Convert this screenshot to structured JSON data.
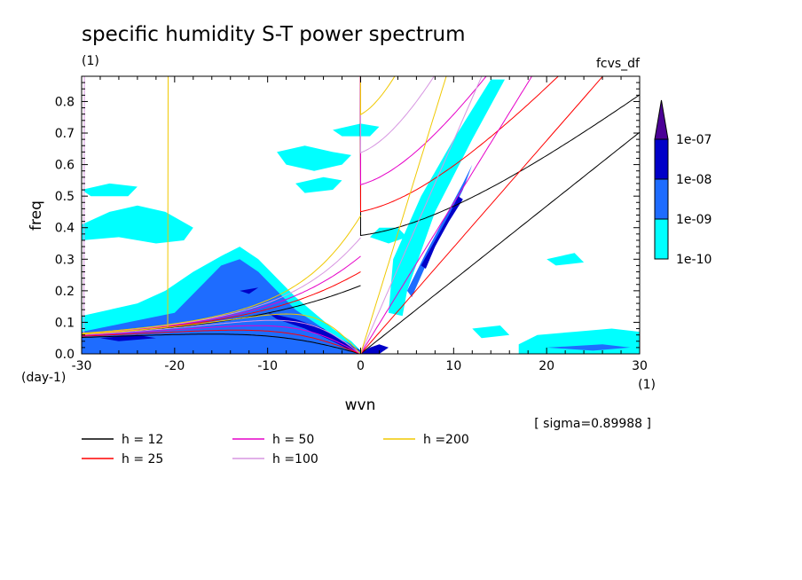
{
  "chart_data": {
    "type": "heatmap",
    "title": "specific humidity S-T power spectrum",
    "subtitle_left": "(1)",
    "subtitle_right": "fcvs_df",
    "xlabel": "wvn",
    "ylabel": "freq",
    "x_unit": "(1)",
    "y_unit": "(day-1)",
    "xlim": [
      -30,
      30
    ],
    "ylim": [
      0,
      0.88
    ],
    "xticks": [
      -30,
      -20,
      -10,
      0,
      10,
      20,
      30
    ],
    "xtick_labels": [
      "-30",
      "-20",
      "-10",
      "0",
      "10",
      "20",
      "30"
    ],
    "yticks": [
      0.0,
      0.1,
      0.2,
      0.3,
      0.4,
      0.5,
      0.6,
      0.7,
      0.8
    ],
    "ytick_labels": [
      "0.0",
      "0.1",
      "0.2",
      "0.3",
      "0.4",
      "0.5",
      "0.6",
      "0.7",
      "0.8"
    ],
    "sigma_note": "[ sigma=0.89988 ]",
    "colorbar": {
      "levels": [
        "1e-10",
        "1e-09",
        "1e-08",
        "1e-07"
      ],
      "colors": [
        "#00ffff",
        "#1e6cff",
        "#0000c8",
        "#4b0096"
      ]
    },
    "dispersion_curves": [
      {
        "label": "h = 12",
        "h": 12,
        "color": "#000000"
      },
      {
        "label": "h = 25",
        "h": 25,
        "color": "#ff0000"
      },
      {
        "label": "h = 50",
        "h": 50,
        "color": "#e600c8"
      },
      {
        "label": "h =100",
        "h": 100,
        "color": "#d796e1"
      },
      {
        "label": "h =200",
        "h": 200,
        "color": "#f0c800"
      }
    ],
    "contour_regions": [
      {
        "level": 1,
        "points": [
          [
            -30,
            0.0
          ],
          [
            -30,
            0.12
          ],
          [
            -27,
            0.14
          ],
          [
            -24,
            0.16
          ],
          [
            -21,
            0.2
          ],
          [
            -18,
            0.26
          ],
          [
            -15,
            0.31
          ],
          [
            -13,
            0.34
          ],
          [
            -11,
            0.3
          ],
          [
            -9,
            0.24
          ],
          [
            -7,
            0.18
          ],
          [
            -5,
            0.13
          ],
          [
            -3,
            0.08
          ],
          [
            -1,
            0.04
          ],
          [
            0,
            0.01
          ],
          [
            0,
            0.0
          ]
        ]
      },
      {
        "level": 1,
        "points": [
          [
            -30,
            0.41
          ],
          [
            -27,
            0.45
          ],
          [
            -24,
            0.47
          ],
          [
            -21,
            0.45
          ],
          [
            -18,
            0.4
          ],
          [
            -19,
            0.36
          ],
          [
            -22,
            0.35
          ],
          [
            -26,
            0.37
          ],
          [
            -30,
            0.36
          ]
        ]
      },
      {
        "level": 1,
        "points": [
          [
            -30,
            0.52
          ],
          [
            -27,
            0.54
          ],
          [
            -24,
            0.53
          ],
          [
            -25,
            0.5
          ],
          [
            -29,
            0.5
          ]
        ]
      },
      {
        "level": 1,
        "points": [
          [
            -9,
            0.64
          ],
          [
            -6,
            0.66
          ],
          [
            -3,
            0.64
          ],
          [
            -1,
            0.63
          ],
          [
            -2,
            0.6
          ],
          [
            -5,
            0.58
          ],
          [
            -8,
            0.6
          ]
        ]
      },
      {
        "level": 1,
        "points": [
          [
            -7,
            0.54
          ],
          [
            -4,
            0.56
          ],
          [
            -2,
            0.55
          ],
          [
            -3,
            0.52
          ],
          [
            -6,
            0.51
          ]
        ]
      },
      {
        "level": 1,
        "points": [
          [
            -3,
            0.71
          ],
          [
            0,
            0.73
          ],
          [
            2,
            0.72
          ],
          [
            1,
            0.69
          ],
          [
            -2,
            0.69
          ]
        ]
      },
      {
        "level": 1,
        "points": [
          [
            2,
            0.4
          ],
          [
            4,
            0.4
          ],
          [
            5,
            0.37
          ],
          [
            3,
            0.35
          ],
          [
            1,
            0.37
          ]
        ]
      },
      {
        "level": 1,
        "points": [
          [
            3,
            0.13
          ],
          [
            3.5,
            0.3
          ],
          [
            6.5,
            0.5
          ],
          [
            10,
            0.68
          ],
          [
            14,
            0.87
          ],
          [
            15.5,
            0.87
          ],
          [
            12,
            0.68
          ],
          [
            8,
            0.45
          ],
          [
            5,
            0.2
          ],
          [
            4.5,
            0.12
          ]
        ]
      },
      {
        "level": 1,
        "points": [
          [
            17,
            0.03
          ],
          [
            19,
            0.06
          ],
          [
            23,
            0.07
          ],
          [
            27,
            0.08
          ],
          [
            30,
            0.07
          ],
          [
            30,
            0.0
          ],
          [
            17,
            0.0
          ]
        ]
      },
      {
        "level": 1,
        "points": [
          [
            12,
            0.08
          ],
          [
            15,
            0.09
          ],
          [
            16,
            0.06
          ],
          [
            13,
            0.05
          ]
        ]
      },
      {
        "level": 1,
        "points": [
          [
            20,
            0.3
          ],
          [
            23,
            0.32
          ],
          [
            24,
            0.29
          ],
          [
            21,
            0.28
          ]
        ]
      },
      {
        "level": 2,
        "points": [
          [
            -30,
            0.02
          ],
          [
            -30,
            0.07
          ],
          [
            -25,
            0.1
          ],
          [
            -20,
            0.13
          ],
          [
            -17,
            0.22
          ],
          [
            -15,
            0.28
          ],
          [
            -13,
            0.3
          ],
          [
            -11,
            0.26
          ],
          [
            -9,
            0.2
          ],
          [
            -7,
            0.14
          ],
          [
            -5,
            0.1
          ],
          [
            -3,
            0.06
          ],
          [
            -1,
            0.03
          ],
          [
            0,
            0.01
          ],
          [
            0,
            0.0
          ],
          [
            -30,
            0.0
          ]
        ]
      },
      {
        "level": 2,
        "points": [
          [
            5,
            0.2
          ],
          [
            7,
            0.32
          ],
          [
            9,
            0.43
          ],
          [
            11,
            0.54
          ],
          [
            12,
            0.6
          ],
          [
            11,
            0.52
          ],
          [
            9,
            0.4
          ],
          [
            7,
            0.28
          ],
          [
            5.5,
            0.18
          ]
        ]
      },
      {
        "level": 2,
        "points": [
          [
            20,
            0.02
          ],
          [
            26,
            0.03
          ],
          [
            29,
            0.02
          ],
          [
            25,
            0.01
          ]
        ]
      },
      {
        "level": 3,
        "points": [
          [
            -10,
            0.13
          ],
          [
            -7,
            0.11
          ],
          [
            -4,
            0.08
          ],
          [
            -2,
            0.04
          ],
          [
            0,
            0.01
          ],
          [
            -1,
            0.01
          ],
          [
            -3,
            0.04
          ],
          [
            -6,
            0.08
          ],
          [
            -9,
            0.11
          ]
        ]
      },
      {
        "level": 3,
        "points": [
          [
            -28,
            0.05
          ],
          [
            -24,
            0.06
          ],
          [
            -22,
            0.05
          ],
          [
            -26,
            0.04
          ]
        ]
      },
      {
        "level": 3,
        "points": [
          [
            -13,
            0.2
          ],
          [
            -11,
            0.21
          ],
          [
            -12,
            0.19
          ]
        ]
      },
      {
        "level": 3,
        "points": [
          [
            6.5,
            0.28
          ],
          [
            8,
            0.36
          ],
          [
            9.5,
            0.44
          ],
          [
            10.5,
            0.5
          ],
          [
            11,
            0.49
          ],
          [
            9.5,
            0.42
          ],
          [
            8,
            0.34
          ],
          [
            7,
            0.27
          ]
        ]
      },
      {
        "level": 3,
        "points": [
          [
            0,
            0.0
          ],
          [
            1,
            0.02
          ],
          [
            2,
            0.03
          ],
          [
            3,
            0.02
          ],
          [
            2,
            0.0
          ]
        ]
      }
    ]
  }
}
